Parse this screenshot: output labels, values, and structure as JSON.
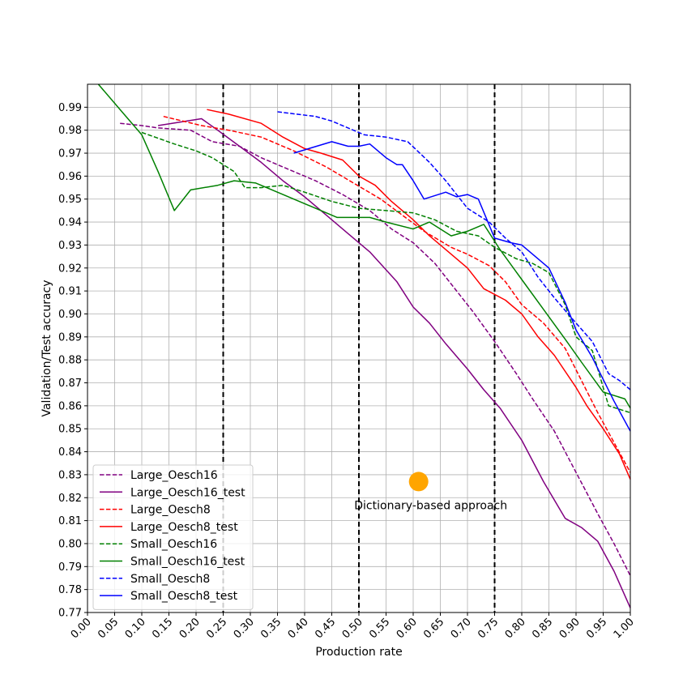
{
  "chart_data": {
    "type": "line",
    "xlabel": "Production rate",
    "ylabel": "Validation/Test accuracy",
    "xlim": [
      0.0,
      1.0
    ],
    "ylim": [
      0.77,
      1.0
    ],
    "xticks": [
      "0.00",
      "0.05",
      "0.10",
      "0.15",
      "0.20",
      "0.25",
      "0.30",
      "0.35",
      "0.40",
      "0.45",
      "0.50",
      "0.55",
      "0.60",
      "0.65",
      "0.70",
      "0.75",
      "0.80",
      "0.85",
      "0.90",
      "0.95",
      "1.00"
    ],
    "yticks": [
      "0.77",
      "0.78",
      "0.79",
      "0.80",
      "0.81",
      "0.82",
      "0.83",
      "0.84",
      "0.85",
      "0.86",
      "0.87",
      "0.88",
      "0.89",
      "0.90",
      "0.91",
      "0.92",
      "0.93",
      "0.94",
      "0.95",
      "0.96",
      "0.97",
      "0.98",
      "0.99"
    ],
    "grid": true,
    "legend_position": "lower-left",
    "vlines": [
      0.25,
      0.5,
      0.75
    ],
    "series": [
      {
        "name": "Large_Oesch16",
        "color": "#800080",
        "style": "dashed",
        "x": [
          0.06,
          0.1,
          0.13,
          0.19,
          0.23,
          0.28,
          0.32,
          0.37,
          0.42,
          0.47,
          0.52,
          0.56,
          0.6,
          0.64,
          0.68,
          0.71,
          0.75,
          0.79,
          0.82,
          0.86,
          0.9,
          0.94,
          0.97,
          1.0
        ],
        "y": [
          0.983,
          0.982,
          0.981,
          0.98,
          0.975,
          0.973,
          0.968,
          0.963,
          0.958,
          0.952,
          0.945,
          0.937,
          0.931,
          0.922,
          0.91,
          0.901,
          0.888,
          0.874,
          0.863,
          0.849,
          0.831,
          0.813,
          0.8,
          0.786
        ]
      },
      {
        "name": "Large_Oesch16_test",
        "color": "#800080",
        "style": "solid",
        "x": [
          0.13,
          0.21,
          0.24,
          0.28,
          0.32,
          0.36,
          0.4,
          0.44,
          0.48,
          0.52,
          0.57,
          0.6,
          0.63,
          0.66,
          0.7,
          0.73,
          0.76,
          0.8,
          0.84,
          0.88,
          0.91,
          0.94,
          0.97,
          1.0
        ],
        "y": [
          0.982,
          0.985,
          0.98,
          0.973,
          0.966,
          0.958,
          0.951,
          0.943,
          0.935,
          0.927,
          0.914,
          0.903,
          0.896,
          0.887,
          0.876,
          0.867,
          0.859,
          0.845,
          0.827,
          0.811,
          0.807,
          0.801,
          0.788,
          0.772
        ]
      },
      {
        "name": "Large_Oesch8",
        "color": "#ff0000",
        "style": "dashed",
        "x": [
          0.14,
          0.21,
          0.26,
          0.32,
          0.38,
          0.44,
          0.49,
          0.54,
          0.58,
          0.62,
          0.67,
          0.7,
          0.74,
          0.77,
          0.8,
          0.84,
          0.88,
          0.91,
          0.94,
          0.97,
          1.0
        ],
        "y": [
          0.986,
          0.982,
          0.98,
          0.977,
          0.971,
          0.964,
          0.957,
          0.95,
          0.943,
          0.936,
          0.929,
          0.926,
          0.921,
          0.914,
          0.904,
          0.896,
          0.885,
          0.871,
          0.857,
          0.844,
          0.831
        ]
      },
      {
        "name": "Large_Oesch8_test",
        "color": "#ff0000",
        "style": "solid",
        "x": [
          0.22,
          0.26,
          0.32,
          0.36,
          0.4,
          0.43,
          0.47,
          0.5,
          0.53,
          0.56,
          0.6,
          0.63,
          0.66,
          0.7,
          0.73,
          0.77,
          0.8,
          0.83,
          0.86,
          0.9,
          0.92,
          0.95,
          0.98,
          1.0
        ],
        "y": [
          0.989,
          0.987,
          0.983,
          0.977,
          0.972,
          0.97,
          0.967,
          0.96,
          0.956,
          0.949,
          0.941,
          0.934,
          0.928,
          0.92,
          0.911,
          0.906,
          0.9,
          0.89,
          0.882,
          0.868,
          0.86,
          0.85,
          0.839,
          0.828
        ]
      },
      {
        "name": "Small_Oesch16",
        "color": "#008000",
        "style": "dashed",
        "x": [
          0.1,
          0.16,
          0.2,
          0.23,
          0.27,
          0.29,
          0.32,
          0.36,
          0.4,
          0.45,
          0.5,
          0.55,
          0.6,
          0.64,
          0.68,
          0.72,
          0.75,
          0.79,
          0.82,
          0.85,
          0.88,
          0.9,
          0.93,
          0.96,
          1.0
        ],
        "y": [
          0.979,
          0.974,
          0.971,
          0.968,
          0.962,
          0.955,
          0.955,
          0.956,
          0.953,
          0.949,
          0.946,
          0.945,
          0.944,
          0.941,
          0.936,
          0.934,
          0.929,
          0.924,
          0.922,
          0.918,
          0.904,
          0.89,
          0.884,
          0.86,
          0.857
        ]
      },
      {
        "name": "Small_Oesch16_test",
        "color": "#008000",
        "style": "solid",
        "x": [
          0.02,
          0.06,
          0.1,
          0.13,
          0.16,
          0.19,
          0.24,
          0.27,
          0.31,
          0.36,
          0.41,
          0.46,
          0.52,
          0.55,
          0.6,
          0.63,
          0.67,
          0.7,
          0.73,
          0.76,
          0.8,
          0.84,
          0.88,
          0.91,
          0.95,
          0.99,
          1.0
        ],
        "y": [
          1.0,
          0.989,
          0.978,
          0.962,
          0.945,
          0.954,
          0.956,
          0.958,
          0.957,
          0.952,
          0.947,
          0.942,
          0.942,
          0.94,
          0.937,
          0.94,
          0.934,
          0.936,
          0.939,
          0.928,
          0.915,
          0.902,
          0.889,
          0.879,
          0.866,
          0.863,
          0.859
        ]
      },
      {
        "name": "Small_Oesch8",
        "color": "#0000ff",
        "style": "dashed",
        "x": [
          0.35,
          0.42,
          0.45,
          0.48,
          0.51,
          0.55,
          0.59,
          0.63,
          0.66,
          0.7,
          0.74,
          0.77,
          0.8,
          0.83,
          0.86,
          0.9,
          0.93,
          0.96,
          0.98,
          1.0
        ],
        "y": [
          0.988,
          0.986,
          0.984,
          0.981,
          0.978,
          0.977,
          0.975,
          0.966,
          0.958,
          0.946,
          0.94,
          0.933,
          0.927,
          0.916,
          0.907,
          0.896,
          0.888,
          0.874,
          0.871,
          0.867
        ]
      },
      {
        "name": "Small_Oesch8_test",
        "color": "#0000ff",
        "style": "solid",
        "x": [
          0.38,
          0.45,
          0.48,
          0.5,
          0.52,
          0.55,
          0.57,
          0.58,
          0.6,
          0.62,
          0.66,
          0.68,
          0.7,
          0.71,
          0.72,
          0.75,
          0.78,
          0.8,
          0.83,
          0.85,
          0.88,
          0.9,
          0.93,
          0.97,
          1.0
        ],
        "y": [
          0.97,
          0.975,
          0.973,
          0.973,
          0.974,
          0.968,
          0.965,
          0.965,
          0.958,
          0.95,
          0.953,
          0.951,
          0.952,
          0.951,
          0.95,
          0.933,
          0.931,
          0.93,
          0.924,
          0.92,
          0.905,
          0.893,
          0.881,
          0.862,
          0.849
        ]
      }
    ],
    "point": {
      "x": 0.61,
      "y": 0.827,
      "color": "#ffa500",
      "label": "Dictionary-based approach"
    }
  }
}
